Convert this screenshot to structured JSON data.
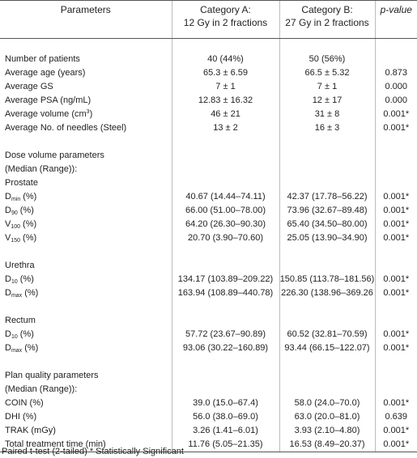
{
  "header": {
    "parameters": "Parameters",
    "category_a": [
      "Category A:",
      "12 Gy in 2 fractions"
    ],
    "category_b": [
      "Category B:",
      "27 Gy in 2 fractions"
    ],
    "p_value": "p-value"
  },
  "sections": [
    {
      "rows": [
        {
          "label": "Number of patients",
          "a": "40 (44%)",
          "b": "50 (56%)"
        },
        {
          "label": "Average age (years)",
          "a": "65.3 ± 6.59",
          "b": "66.5 ± 5.32",
          "p": "0.873"
        },
        {
          "label": "Average GS",
          "a": "7 ± 1",
          "b": "7 ± 1",
          "p": "0.000"
        },
        {
          "label": "Average PSA (ng/mL)",
          "a": "12.83 ± 16.32",
          "b": "12 ± 17",
          "p": "0.000"
        },
        {
          "label": "Average volume (cm",
          "sup": "3",
          "label_end": ")",
          "a": "46 ± 21",
          "b": "31 ± 8",
          "p": "0.001*"
        },
        {
          "label": "Average No. of needles (Steel)",
          "a": "13 ± 2",
          "b": "16 ± 3",
          "p": "0.001*"
        }
      ]
    },
    {
      "heading": [
        "Dose volume parameters",
        "(Median (Range)):",
        "Prostate"
      ],
      "rows": [
        {
          "label": "D",
          "sub": "min",
          "label_end": "(%)",
          "a": "40.67 (14.44–74.11)",
          "b": "42.37 (17.78–56.22)",
          "p": "0.001*"
        },
        {
          "label": "D",
          "sub": "90",
          "label_end": "(%)",
          "a": "66.00 (51.00–78.00)",
          "b": "73.96 (32.67–89.48)",
          "p": "0.001*"
        },
        {
          "label": "V",
          "sub": "100",
          "label_end": "(%)",
          "a": "64.20 (26.30–90.30)",
          "b": "65.40 (34.50–80.00)",
          "p": "0.001*"
        },
        {
          "label": "V",
          "sub": "150",
          "label_end": "(%)",
          "a": "20.70 (3.90–70.60)",
          "b": "25.05 (13.90–34.90)",
          "p": "0.001*"
        }
      ]
    },
    {
      "heading": [
        "Urethra"
      ],
      "rows": [
        {
          "label": "D",
          "sub": "10",
          "label_end": "(%)",
          "a": "134.17 (103.89–209.22)",
          "b": "150.85 (113.78–181.56)",
          "p": "0.001*"
        },
        {
          "label": "D",
          "sub": "max",
          "label_end": "(%)",
          "a": "163.94 (108.89–440.78)",
          "b": "226.30 (138.96–369.26",
          "p": "0.001*"
        }
      ]
    },
    {
      "heading": [
        "Rectum"
      ],
      "rows": [
        {
          "label": "D",
          "sub": "10",
          "label_end": "(%)",
          "a": "57.72 (23.67–90.89)",
          "b": "60.52 (32.81–70.59)",
          "p": "0.001*"
        },
        {
          "label": "D",
          "sub": "max",
          "label_end": "(%)",
          "a": "93.06 (30.22–160.89)",
          "b": "93.44 (66.15–122.07)",
          "p": "0.001*"
        }
      ]
    },
    {
      "heading": [
        "Plan quality parameters",
        "(Median (Range)):"
      ],
      "rows": [
        {
          "label": "COIN (%)",
          "a": "39.0 (15.0–67.4)",
          "b": "58.0 (24.0–70.0)",
          "p": "0.001*"
        },
        {
          "label": "DHI (%)",
          "a": "56.0 (38.0–69.0)",
          "b": "63.0 (20.0–81.0)",
          "p": "0.639"
        },
        {
          "label": "TRAK (mGy)",
          "a": "3.26 (1.41–6.01)",
          "b": "3.93 (2.10–4.80)",
          "p": "0.001*"
        },
        {
          "label": "Total treatment time (min)",
          "a": "11.76 (5.05–21.35)",
          "b": "16.53 (8.49–20.37)",
          "p": "0.001*"
        }
      ]
    }
  ],
  "footnote": "Paired t-test (2-tailed) * Statistically Significant"
}
